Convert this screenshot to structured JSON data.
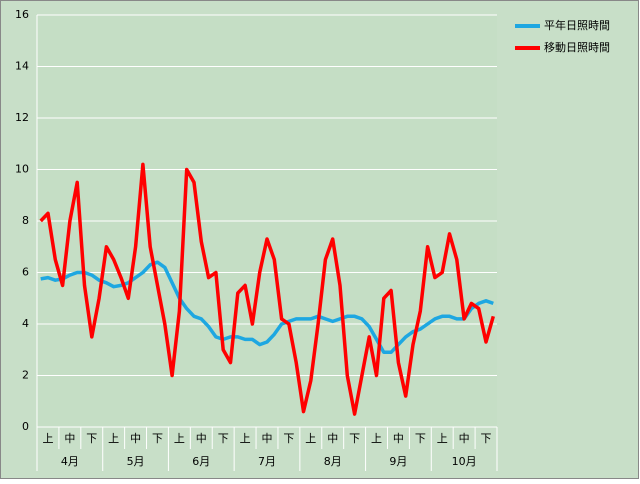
{
  "chart_data": {
    "type": "line",
    "categories": [
      null,
      "上",
      null,
      null,
      "中",
      null,
      null,
      "下",
      null,
      null,
      "上",
      null,
      null,
      "中",
      null,
      null,
      "下",
      null,
      null,
      "上",
      null,
      null,
      "中",
      null,
      null,
      "下",
      null,
      null,
      "上",
      null,
      null,
      "中",
      null,
      null,
      "下",
      null,
      null,
      "上",
      null,
      null,
      "中",
      null,
      null,
      "下",
      null,
      null,
      "上",
      null,
      null,
      "中",
      null,
      null,
      "下",
      null,
      null,
      "上",
      null,
      null,
      "中",
      null,
      null,
      "下",
      null
    ],
    "month_labels": [
      "4月",
      "5月",
      "6月",
      "7月",
      "8月",
      "9月",
      "10月"
    ],
    "series": [
      {
        "name": "平年日照時間",
        "color": "#1ea7e1",
        "values": [
          5.75,
          5.8,
          5.7,
          5.75,
          5.9,
          6.0,
          6.0,
          5.9,
          5.7,
          5.6,
          5.45,
          5.5,
          5.6,
          5.8,
          6.0,
          6.3,
          6.4,
          6.2,
          5.6,
          5.0,
          4.6,
          4.3,
          4.2,
          3.9,
          3.5,
          3.4,
          3.5,
          3.5,
          3.4,
          3.4,
          3.2,
          3.3,
          3.6,
          4.0,
          4.1,
          4.2,
          4.2,
          4.2,
          4.3,
          4.2,
          4.1,
          4.2,
          4.3,
          4.3,
          4.2,
          3.9,
          3.4,
          2.9,
          2.9,
          3.2,
          3.5,
          3.7,
          3.8,
          4.0,
          4.2,
          4.3,
          4.3,
          4.2,
          4.2,
          4.6,
          4.8,
          4.9,
          4.8
        ]
      },
      {
        "name": "移動日照時間",
        "color": "#ff0000",
        "values": [
          8.0,
          8.3,
          6.5,
          5.5,
          8.0,
          9.5,
          5.5,
          3.5,
          5.0,
          7.0,
          6.5,
          5.8,
          5.0,
          7.0,
          10.2,
          7.0,
          5.5,
          4.0,
          2.0,
          4.5,
          10.0,
          9.5,
          7.2,
          5.8,
          6.0,
          3.0,
          2.5,
          5.2,
          5.5,
          4.0,
          6.0,
          7.3,
          6.5,
          4.2,
          4.0,
          2.5,
          0.6,
          1.8,
          4.0,
          6.5,
          7.3,
          5.5,
          2.0,
          0.5,
          2.0,
          3.5,
          2.0,
          5.0,
          5.3,
          2.5,
          1.2,
          3.2,
          4.5,
          7.0,
          5.8,
          6.0,
          7.5,
          6.5,
          4.2,
          4.8,
          4.6,
          3.3,
          4.3
        ]
      }
    ],
    "ylim": [
      0,
      16
    ],
    "yticks": [
      0,
      2,
      4,
      6,
      8,
      10,
      12,
      14,
      16
    ],
    "grid": true,
    "legend": "right"
  }
}
